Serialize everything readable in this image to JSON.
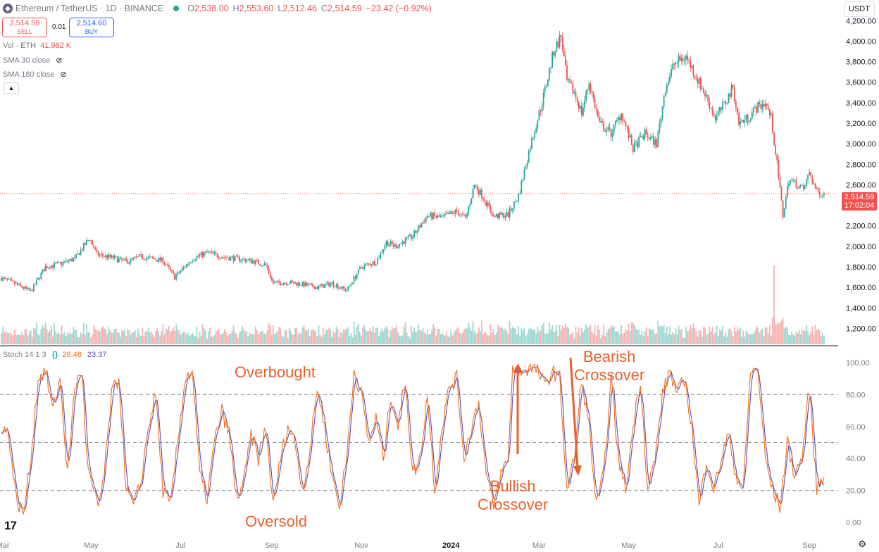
{
  "header": {
    "symbol": "Ethereum / TetherUS · 1D · BINANCE",
    "o_label": "O",
    "o": "2,538.00",
    "h_label": "H",
    "h": "2,553.60",
    "l_label": "L",
    "l": "2,512.46",
    "c_label": "C",
    "c": "2,514.59",
    "change": "−23.42 (−0.92%)"
  },
  "trade": {
    "sell_price": "2,514.59",
    "sell_label": "SELL",
    "spread": "0.01",
    "buy_price": "2,514.60",
    "buy_label": "BUY"
  },
  "indicators": {
    "vol_label": "Vol · ETH",
    "vol_value": "41.962 K",
    "sma30": "SMA 30 close",
    "sma180": "SMA 180 close"
  },
  "currency": "USDT",
  "last_price": {
    "value": "2,514.59",
    "countdown": "17:02:04"
  },
  "stoch_legend": {
    "name": "Stoch 14 1 3",
    "k": "28.48",
    "d": "23.37"
  },
  "annotations": {
    "overbought": "Overbought",
    "oversold": "Oversold",
    "bullish_line1": "Bullish",
    "bullish_line2": "Crossover",
    "bearish_line1": "Bearish",
    "bearish_line2": "Crossover"
  },
  "colors": {
    "up": "#26a69a",
    "down": "#ef5350",
    "k": "#f26b1d",
    "d": "#5b4fa8",
    "annotation": "#e8602c"
  },
  "chart_data": [
    {
      "type": "candlestick",
      "symbol": "ETH/USDT",
      "interval": "1D",
      "ylim": [
        1100,
        4250
      ],
      "y_ticks": [
        "4,200.00",
        "4,000.00",
        "3,800.00",
        "3,600.00",
        "3,400.00",
        "3,200.00",
        "3,000.00",
        "2,800.00",
        "2,600.00",
        "2,200.00",
        "2,000.00",
        "1,800.00",
        "1,600.00",
        "1,400.00",
        "1,200.00"
      ],
      "y_tick_values": [
        4200,
        4000,
        3800,
        3600,
        3400,
        3200,
        3000,
        2800,
        2600,
        2200,
        2000,
        1800,
        1600,
        1400,
        1200
      ],
      "x_ticks": [
        "Mar",
        "May",
        "Jul",
        "Sep",
        "Nov",
        "2024",
        "Mar",
        "May",
        "Jul",
        "Sep"
      ],
      "x_tick_index": [
        1,
        61,
        122,
        184,
        245,
        306,
        366,
        427,
        488,
        550
      ],
      "close_anchors": [
        [
          0,
          1690
        ],
        [
          10,
          1630
        ],
        [
          20,
          1560
        ],
        [
          30,
          1800
        ],
        [
          40,
          1830
        ],
        [
          50,
          1880
        ],
        [
          60,
          2080
        ],
        [
          65,
          1920
        ],
        [
          75,
          1890
        ],
        [
          85,
          1850
        ],
        [
          95,
          1900
        ],
        [
          110,
          1860
        ],
        [
          118,
          1700
        ],
        [
          130,
          1880
        ],
        [
          140,
          1940
        ],
        [
          150,
          1900
        ],
        [
          160,
          1880
        ],
        [
          170,
          1860
        ],
        [
          180,
          1820
        ],
        [
          185,
          1640
        ],
        [
          195,
          1650
        ],
        [
          205,
          1630
        ],
        [
          215,
          1600
        ],
        [
          225,
          1640
        ],
        [
          235,
          1570
        ],
        [
          245,
          1800
        ],
        [
          255,
          1850
        ],
        [
          262,
          2040
        ],
        [
          268,
          2000
        ],
        [
          280,
          2100
        ],
        [
          290,
          2300
        ],
        [
          300,
          2280
        ],
        [
          310,
          2340
        ],
        [
          316,
          2270
        ],
        [
          322,
          2600
        ],
        [
          328,
          2480
        ],
        [
          335,
          2290
        ],
        [
          345,
          2310
        ],
        [
          352,
          2490
        ],
        [
          360,
          2980
        ],
        [
          368,
          3400
        ],
        [
          376,
          3900
        ],
        [
          381,
          4050
        ],
        [
          385,
          3600
        ],
        [
          390,
          3500
        ],
        [
          395,
          3300
        ],
        [
          400,
          3600
        ],
        [
          407,
          3200
        ],
        [
          415,
          3100
        ],
        [
          422,
          3300
        ],
        [
          430,
          2950
        ],
        [
          438,
          3100
        ],
        [
          446,
          3000
        ],
        [
          452,
          3550
        ],
        [
          458,
          3780
        ],
        [
          466,
          3850
        ],
        [
          472,
          3680
        ],
        [
          480,
          3450
        ],
        [
          486,
          3250
        ],
        [
          492,
          3380
        ],
        [
          498,
          3550
        ],
        [
          502,
          3200
        ],
        [
          508,
          3250
        ],
        [
          514,
          3350
        ],
        [
          520,
          3400
        ],
        [
          524,
          3250
        ],
        [
          528,
          2800
        ],
        [
          532,
          2300
        ],
        [
          536,
          2650
        ],
        [
          540,
          2620
        ],
        [
          546,
          2550
        ],
        [
          550,
          2720
        ],
        [
          555,
          2530
        ],
        [
          560,
          2515
        ]
      ],
      "volume_spikes": {
        "index": [
          526
        ],
        "scale": [
          4.0
        ]
      },
      "last_close": 2514.59
    },
    {
      "type": "line",
      "name": "Stoch 14 1 3",
      "ylim": [
        0,
        100
      ],
      "y_ticks": [
        "100.00",
        "80.00",
        "60.00",
        "40.00",
        "20.00",
        "0.00"
      ],
      "y_tick_values": [
        100,
        80,
        60,
        40,
        20,
        0
      ],
      "reference_lines": [
        80,
        50,
        20
      ],
      "k_anchors": [
        [
          0,
          60
        ],
        [
          5,
          55
        ],
        [
          10,
          15
        ],
        [
          15,
          5
        ],
        [
          20,
          40
        ],
        [
          25,
          90
        ],
        [
          30,
          95
        ],
        [
          35,
          70
        ],
        [
          40,
          90
        ],
        [
          45,
          30
        ],
        [
          50,
          85
        ],
        [
          55,
          95
        ],
        [
          58,
          40
        ],
        [
          62,
          20
        ],
        [
          66,
          10
        ],
        [
          70,
          30
        ],
        [
          75,
          80
        ],
        [
          80,
          90
        ],
        [
          85,
          20
        ],
        [
          90,
          10
        ],
        [
          95,
          25
        ],
        [
          100,
          60
        ],
        [
          105,
          80
        ],
        [
          110,
          20
        ],
        [
          115,
          10
        ],
        [
          120,
          50
        ],
        [
          125,
          90
        ],
        [
          130,
          95
        ],
        [
          135,
          30
        ],
        [
          140,
          15
        ],
        [
          145,
          50
        ],
        [
          150,
          70
        ],
        [
          155,
          55
        ],
        [
          160,
          15
        ],
        [
          165,
          25
        ],
        [
          170,
          55
        ],
        [
          175,
          40
        ],
        [
          180,
          60
        ],
        [
          185,
          10
        ],
        [
          190,
          40
        ],
        [
          195,
          60
        ],
        [
          200,
          50
        ],
        [
          205,
          20
        ],
        [
          210,
          45
        ],
        [
          215,
          85
        ],
        [
          220,
          60
        ],
        [
          225,
          30
        ],
        [
          230,
          10
        ],
        [
          235,
          40
        ],
        [
          240,
          95
        ],
        [
          245,
          80
        ],
        [
          250,
          50
        ],
        [
          255,
          65
        ],
        [
          260,
          40
        ],
        [
          265,
          80
        ],
        [
          270,
          60
        ],
        [
          275,
          90
        ],
        [
          280,
          30
        ],
        [
          285,
          40
        ],
        [
          290,
          80
        ],
        [
          295,
          20
        ],
        [
          300,
          60
        ],
        [
          305,
          85
        ],
        [
          310,
          90
        ],
        [
          315,
          40
        ],
        [
          320,
          60
        ],
        [
          325,
          75
        ],
        [
          330,
          30
        ],
        [
          335,
          10
        ],
        [
          340,
          30
        ],
        [
          345,
          40
        ],
        [
          348,
          97
        ],
        [
          355,
          95
        ],
        [
          360,
          97
        ],
        [
          365,
          95
        ],
        [
          370,
          85
        ],
        [
          375,
          95
        ],
        [
          380,
          90
        ],
        [
          385,
          20
        ],
        [
          390,
          40
        ],
        [
          395,
          90
        ],
        [
          400,
          60
        ],
        [
          405,
          10
        ],
        [
          410,
          30
        ],
        [
          415,
          90
        ],
        [
          420,
          40
        ],
        [
          425,
          20
        ],
        [
          430,
          60
        ],
        [
          435,
          90
        ],
        [
          440,
          20
        ],
        [
          445,
          40
        ],
        [
          450,
          80
        ],
        [
          455,
          95
        ],
        [
          460,
          80
        ],
        [
          465,
          90
        ],
        [
          470,
          60
        ],
        [
          475,
          10
        ],
        [
          480,
          40
        ],
        [
          485,
          20
        ],
        [
          490,
          40
        ],
        [
          495,
          55
        ],
        [
          500,
          30
        ],
        [
          505,
          20
        ],
        [
          510,
          95
        ],
        [
          515,
          95
        ],
        [
          520,
          40
        ],
        [
          525,
          20
        ],
        [
          530,
          10
        ],
        [
          535,
          50
        ],
        [
          540,
          30
        ],
        [
          545,
          40
        ],
        [
          550,
          85
        ],
        [
          555,
          20
        ],
        [
          558,
          28.48
        ]
      ],
      "last_k": 28.48,
      "last_d": 23.37
    }
  ]
}
